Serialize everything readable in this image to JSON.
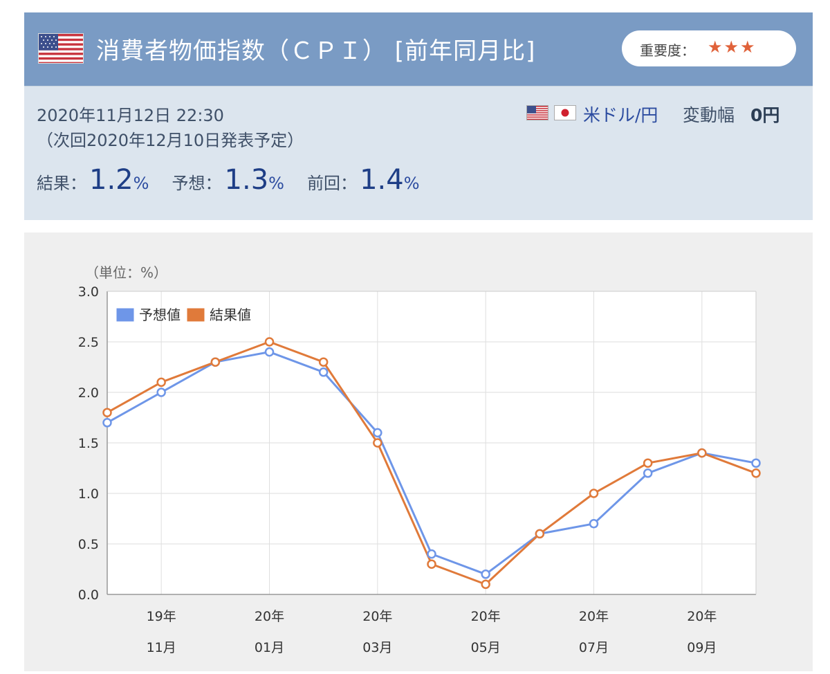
{
  "header": {
    "title": "消費者物価指数（ＣＰＩ） [前年同月比]",
    "importance_label": "重要度：",
    "importance_stars": "★★★",
    "colors": {
      "bar": "#7a9bc4",
      "star": "#e0623a"
    }
  },
  "info": {
    "datetime": "2020年11月12日 22:30",
    "next_release": "（次回2020年12月10日発表予定）",
    "pair": "米ドル/円",
    "range_label": "変動幅",
    "range_value": "0円",
    "result_label": "結果：",
    "result_value": "1.2",
    "forecast_label": "予想：",
    "forecast_value": "1.3",
    "previous_label": "前回：",
    "previous_value": "1.4",
    "unit": "%"
  },
  "chart_data": {
    "type": "line",
    "unit_label": "（単位：%）",
    "ylim": [
      0,
      3.0
    ],
    "y_ticks": [
      "0.0",
      "0.5",
      "1.0",
      "1.5",
      "2.0",
      "2.5",
      "3.0"
    ],
    "x_tick_labels": [
      {
        "index": 1,
        "year": "19年",
        "month": "11月"
      },
      {
        "index": 3,
        "year": "20年",
        "month": "01月"
      },
      {
        "index": 5,
        "year": "20年",
        "month": "03月"
      },
      {
        "index": 7,
        "year": "20年",
        "month": "05月"
      },
      {
        "index": 9,
        "year": "20年",
        "month": "07月"
      },
      {
        "index": 11,
        "year": "20年",
        "month": "09月"
      }
    ],
    "series": [
      {
        "name": "予想値",
        "color": "#6e96e8",
        "values": [
          1.7,
          2.0,
          2.3,
          2.4,
          2.2,
          1.6,
          0.4,
          0.2,
          0.6,
          0.7,
          1.2,
          1.4,
          1.3
        ]
      },
      {
        "name": "結果値",
        "color": "#e07a3a",
        "values": [
          1.8,
          2.1,
          2.3,
          2.5,
          2.3,
          1.5,
          0.3,
          0.1,
          0.6,
          1.0,
          1.3,
          1.4,
          1.2
        ]
      }
    ],
    "grid": true,
    "legend": "top-left"
  }
}
